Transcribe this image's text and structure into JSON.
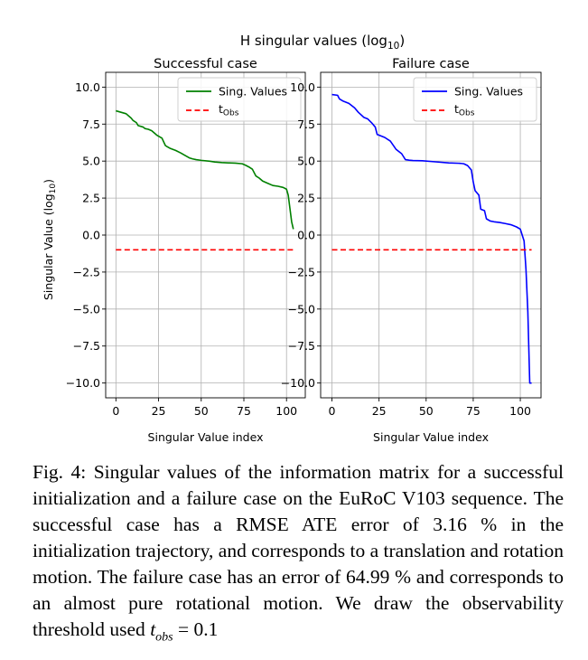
{
  "figure": {
    "suptitle": "H singular values (log",
    "suptitle_sub": "10",
    "suptitle_close": ")",
    "ylabel": "Singular Value (log",
    "ylabel_sub": "10",
    "ylabel_close": ")",
    "colors": {
      "success": "#008000",
      "failure": "#0000ff",
      "threshold": "#ff0000",
      "grid": "#b0b0b0"
    }
  },
  "chart_data": [
    {
      "type": "line",
      "title": "Successful case",
      "xlabel": "Singular Value index",
      "ylabel": "Singular Value (log10)",
      "xlim": [
        -6,
        111
      ],
      "ylim": [
        -11,
        11
      ],
      "xticks": [
        0,
        25,
        50,
        75,
        100
      ],
      "yticks": [
        10.0,
        7.5,
        5.0,
        2.5,
        0.0,
        -2.5,
        -5.0,
        -7.5,
        -10.0
      ],
      "ytick_labels": [
        "10.0",
        "7.5",
        "5.0",
        "2.5",
        "0.0",
        "−2.5",
        "−5.0",
        "−7.5",
        "−10.0"
      ],
      "grid": true,
      "legend_position": "top-right",
      "series": [
        {
          "name": "Sing. Values",
          "style": "solid",
          "color": "#008000",
          "x": [
            0,
            3,
            6,
            9,
            10,
            12,
            13,
            16,
            17,
            19,
            21,
            23,
            24,
            27,
            28,
            29,
            30,
            32,
            35,
            38,
            41,
            43,
            45,
            47,
            50,
            55,
            58,
            62,
            66,
            70,
            74,
            76,
            78,
            80,
            82,
            84,
            86,
            89,
            92,
            95,
            98,
            100,
            101,
            102,
            103,
            104
          ],
          "y": [
            8.4,
            8.3,
            8.2,
            7.9,
            7.75,
            7.6,
            7.4,
            7.3,
            7.2,
            7.15,
            7.05,
            6.85,
            6.75,
            6.55,
            6.3,
            6.05,
            5.98,
            5.85,
            5.72,
            5.55,
            5.35,
            5.22,
            5.15,
            5.1,
            5.05,
            4.99,
            4.94,
            4.9,
            4.88,
            4.86,
            4.82,
            4.72,
            4.6,
            4.45,
            4.0,
            3.85,
            3.65,
            3.5,
            3.35,
            3.3,
            3.22,
            3.1,
            2.7,
            1.8,
            0.9,
            0.4
          ]
        },
        {
          "name": "t_Obs",
          "style": "dashed",
          "color": "#ff0000",
          "x": [
            0,
            104
          ],
          "y": [
            -1.0,
            -1.0
          ]
        }
      ]
    },
    {
      "type": "line",
      "title": "Failure case",
      "xlabel": "Singular Value index",
      "ylabel": "",
      "xlim": [
        -6,
        111
      ],
      "ylim": [
        -11,
        11
      ],
      "xticks": [
        0,
        25,
        50,
        75,
        100
      ],
      "yticks": [
        10.0,
        7.5,
        5.0,
        2.5,
        0.0,
        -2.5,
        -5.0,
        -7.5,
        -10.0
      ],
      "ytick_labels": [
        "10.0",
        "7.5",
        "5.0",
        "2.5",
        "0.0",
        "−2.5",
        "−5.0",
        "−7.5",
        "−10.0"
      ],
      "grid": true,
      "legend_position": "top-right",
      "series": [
        {
          "name": "Sing. Values",
          "style": "solid",
          "color": "#0000ff",
          "x": [
            0,
            3,
            4,
            6,
            9,
            12,
            14,
            17,
            19,
            21,
            23,
            24,
            25,
            28,
            31,
            34,
            37,
            39,
            41,
            43,
            48,
            55,
            62,
            68,
            70,
            72,
            74,
            75,
            76,
            78,
            79,
            81,
            82,
            84,
            86,
            89,
            92,
            95,
            98,
            100,
            102,
            103,
            104,
            105,
            106
          ],
          "y": [
            9.5,
            9.45,
            9.2,
            9.05,
            8.9,
            8.6,
            8.3,
            7.95,
            7.85,
            7.6,
            7.3,
            6.8,
            6.75,
            6.6,
            6.35,
            5.8,
            5.5,
            5.1,
            5.06,
            5.04,
            5.02,
            4.95,
            4.88,
            4.85,
            4.82,
            4.7,
            4.4,
            3.6,
            3.0,
            2.7,
            1.75,
            1.65,
            1.1,
            0.95,
            0.9,
            0.85,
            0.78,
            0.7,
            0.55,
            0.4,
            -0.4,
            -2.3,
            -5.2,
            -10.0,
            -10.0
          ]
        },
        {
          "name": "t_Obs",
          "style": "dashed",
          "color": "#ff0000",
          "x": [
            0,
            106
          ],
          "y": [
            -1.0,
            -1.0
          ]
        }
      ]
    }
  ],
  "legend": {
    "series_label": "Sing. Values",
    "threshold_label": "t",
    "threshold_sub": "Obs"
  },
  "caption": {
    "text_1": "Fig. 4: Singular values of the information matrix for a successful initialization and a failure case on the EuRoC V103 sequence. The successful case has a RMSE ATE error of 3.16 % in the initialization trajectory, and corresponds to a translation and rotation motion. The failure case has an error of 64.99 % and corresponds to an almost pure rotational motion. We draw the observability threshold used ",
    "math_var": "t",
    "math_sub": "obs",
    "math_rest": " = 0.1"
  }
}
